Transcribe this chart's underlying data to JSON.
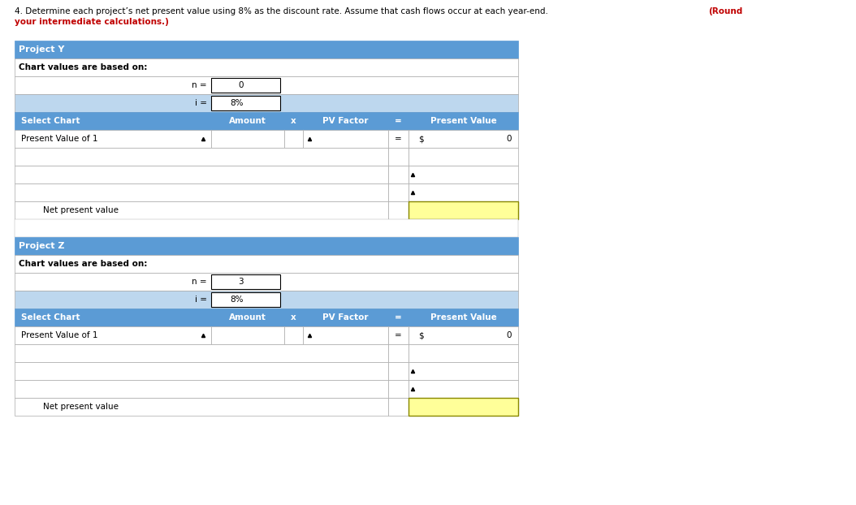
{
  "title_line1": "4. Determine each project’s net present value using 8% as the discount rate. Assume that cash flows occur at each year-end.",
  "title_line2_normal": "",
  "title_bold_red": "(Round your intermediate calculations.)",
  "title_line2_prefix": "your intermediate calculations.)",
  "bg_color": "#ffffff",
  "header_blue": "#5b9bd5",
  "light_blue_row": "#bdd7ee",
  "white": "#ffffff",
  "yellow": "#ffff99",
  "border_color": "#000000",
  "table_border": "#4472c4",
  "project_y": {
    "title": "Project Y",
    "subtitle": "Chart values are based on:",
    "n_label": "n =",
    "n_value": "0",
    "i_label": "i =",
    "i_value": "8%",
    "col_headers": [
      "Select Chart",
      "Amount",
      "x",
      "PV Factor",
      "=",
      "Present Value"
    ],
    "row1_label": "Present Value of 1",
    "row1_pv_prefix": "$",
    "row1_pv_value": "0",
    "npv_label": "Net present value",
    "extra_rows": 3
  },
  "project_z": {
    "title": "Project Z",
    "subtitle": "Chart values are based on:",
    "n_label": "n =",
    "n_value": "3",
    "i_label": "i =",
    "i_value": "8%",
    "col_headers": [
      "Select Chart",
      "Amount",
      "x",
      "PV Factor",
      "=",
      "Present Value"
    ],
    "row1_label": "Present Value of 1",
    "row1_pv_prefix": "$",
    "row1_pv_value": "0",
    "npv_label": "Net present value",
    "extra_rows": 3
  },
  "figure_width": 10.54,
  "figure_height": 6.22,
  "dpi": 100
}
